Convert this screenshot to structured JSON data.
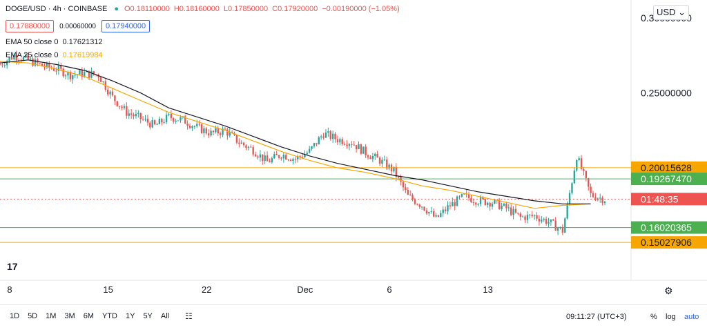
{
  "header": {
    "symbol": "DOGE/USD · 4h · COINBASE",
    "open": "O0.18110000",
    "high": "H0.18160000",
    "low": "L0.17850000",
    "close": "C0.17920000",
    "change": "−0.00190000 (−1.05%)",
    "bid": "0.17880000",
    "spread": "0.00060000",
    "ask": "0.17940000",
    "ema50_label": "EMA 50 close 0",
    "ema50_value": "0.17621312",
    "ema25_label": "EMA 25 close 0",
    "ema25_value": "0.17619984",
    "currency": "USD"
  },
  "toolbar": {
    "ranges": [
      "1D",
      "5D",
      "1M",
      "3M",
      "6M",
      "YTD",
      "1Y",
      "5Y",
      "All"
    ],
    "clock": "09:11:27 (UTC+3)",
    "percent": "%",
    "log": "log",
    "auto": "auto"
  },
  "colors": {
    "up": "#26a69a",
    "down": "#ef5350",
    "ema50": "#131722",
    "ema25": "#f7a600",
    "orange": "#f7a600",
    "green": "#4caf50"
  },
  "chart_data": {
    "type": "candlestick",
    "title": "DOGE/USD · 4h · COINBASE",
    "x_ticks": [
      "8",
      "15",
      "22",
      "Dec",
      "6",
      "13"
    ],
    "y_ticks": [
      "0.30000000",
      "0.25000000"
    ],
    "ylim": [
      0.125,
      0.312
    ],
    "horizontal_levels": [
      {
        "value": 0.20015628,
        "label": "0.20015628",
        "color": "#f7a600"
      },
      {
        "value": 0.1926747,
        "label": "0.19267470",
        "color": "#4caf50"
      },
      {
        "value": 0.16020365,
        "label": "0.16020365",
        "color": "#4caf50"
      },
      {
        "value": 0.15027906,
        "label": "0.15027906",
        "color": "#f7a600"
      }
    ],
    "current_price": {
      "value": 0.1792,
      "label": "01:48:35",
      "color": "#ef5350"
    },
    "ema50_path": [
      [
        0,
        0.27
      ],
      [
        12,
        0.272
      ],
      [
        24,
        0.269
      ],
      [
        36,
        0.265
      ],
      [
        48,
        0.258
      ],
      [
        60,
        0.25
      ],
      [
        72,
        0.24
      ],
      [
        84,
        0.234
      ],
      [
        96,
        0.228
      ],
      [
        108,
        0.221
      ],
      [
        120,
        0.214
      ],
      [
        132,
        0.208
      ],
      [
        144,
        0.203
      ],
      [
        156,
        0.199
      ],
      [
        168,
        0.195
      ],
      [
        180,
        0.192
      ],
      [
        192,
        0.188
      ],
      [
        204,
        0.184
      ],
      [
        216,
        0.181
      ],
      [
        228,
        0.178
      ],
      [
        240,
        0.176
      ],
      [
        252,
        0.176
      ]
    ],
    "ema25_path": [
      [
        0,
        0.271
      ],
      [
        12,
        0.27
      ],
      [
        24,
        0.266
      ],
      [
        36,
        0.261
      ],
      [
        48,
        0.253
      ],
      [
        60,
        0.245
      ],
      [
        72,
        0.237
      ],
      [
        84,
        0.231
      ],
      [
        96,
        0.225
      ],
      [
        108,
        0.218
      ],
      [
        120,
        0.211
      ],
      [
        132,
        0.205
      ],
      [
        144,
        0.2
      ],
      [
        156,
        0.197
      ],
      [
        168,
        0.193
      ],
      [
        180,
        0.188
      ],
      [
        192,
        0.185
      ],
      [
        204,
        0.181
      ],
      [
        216,
        0.177
      ],
      [
        228,
        0.173
      ],
      [
        240,
        0.175
      ],
      [
        252,
        0.176
      ]
    ],
    "price_path": [
      [
        0,
        0.269
      ],
      [
        6,
        0.275
      ],
      [
        12,
        0.272
      ],
      [
        18,
        0.268
      ],
      [
        24,
        0.266
      ],
      [
        30,
        0.262
      ],
      [
        36,
        0.263
      ],
      [
        42,
        0.262
      ],
      [
        48,
        0.247
      ],
      [
        54,
        0.237
      ],
      [
        60,
        0.233
      ],
      [
        66,
        0.228
      ],
      [
        72,
        0.234
      ],
      [
        78,
        0.232
      ],
      [
        84,
        0.227
      ],
      [
        90,
        0.223
      ],
      [
        96,
        0.225
      ],
      [
        102,
        0.217
      ],
      [
        108,
        0.212
      ],
      [
        114,
        0.204
      ],
      [
        120,
        0.209
      ],
      [
        126,
        0.206
      ],
      [
        132,
        0.211
      ],
      [
        138,
        0.223
      ],
      [
        144,
        0.219
      ],
      [
        150,
        0.217
      ],
      [
        156,
        0.21
      ],
      [
        162,
        0.205
      ],
      [
        168,
        0.198
      ],
      [
        174,
        0.181
      ],
      [
        180,
        0.175
      ],
      [
        186,
        0.166
      ],
      [
        192,
        0.175
      ],
      [
        198,
        0.181
      ],
      [
        204,
        0.178
      ],
      [
        210,
        0.177
      ],
      [
        216,
        0.173
      ],
      [
        222,
        0.167
      ],
      [
        228,
        0.168
      ],
      [
        234,
        0.164
      ],
      [
        240,
        0.158
      ],
      [
        246,
        0.208
      ],
      [
        252,
        0.182
      ],
      [
        258,
        0.179
      ]
    ]
  }
}
